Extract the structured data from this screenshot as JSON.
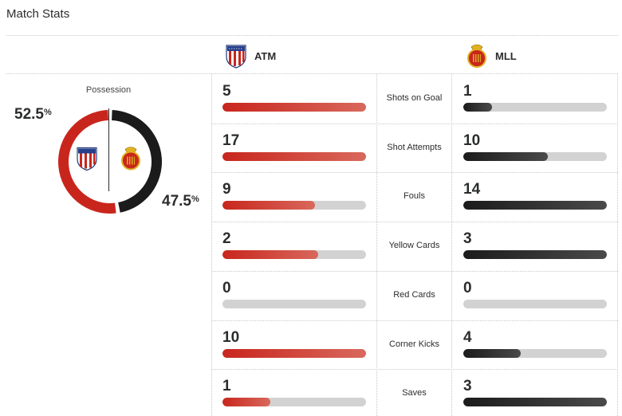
{
  "header": {
    "title": "Match Stats"
  },
  "teams": {
    "home": {
      "abbr": "ATM",
      "crest": "atletico-madrid-crest-icon",
      "color": "#c8261d"
    },
    "away": {
      "abbr": "MLL",
      "crest": "mallorca-crest-icon",
      "color": "#1b1b1b"
    }
  },
  "possession": {
    "label": "Possession",
    "home_value": "52.5",
    "away_value": "47.5",
    "unit": "%",
    "home_fraction": 0.525,
    "away_fraction": 0.475
  },
  "stats": [
    {
      "label": "Shots on Goal",
      "home": "5",
      "away": "1",
      "home_fill": 1.0,
      "away_fill": 0.2
    },
    {
      "label": "Shot Attempts",
      "home": "17",
      "away": "10",
      "home_fill": 1.0,
      "away_fill": 0.588
    },
    {
      "label": "Fouls",
      "home": "9",
      "away": "14",
      "home_fill": 0.643,
      "away_fill": 1.0
    },
    {
      "label": "Yellow Cards",
      "home": "2",
      "away": "3",
      "home_fill": 0.667,
      "away_fill": 1.0
    },
    {
      "label": "Red Cards",
      "home": "0",
      "away": "0",
      "home_fill": 0,
      "away_fill": 0
    },
    {
      "label": "Corner Kicks",
      "home": "10",
      "away": "4",
      "home_fill": 1.0,
      "away_fill": 0.4
    },
    {
      "label": "Saves",
      "home": "1",
      "away": "3",
      "home_fill": 0.333,
      "away_fill": 1.0
    }
  ]
}
